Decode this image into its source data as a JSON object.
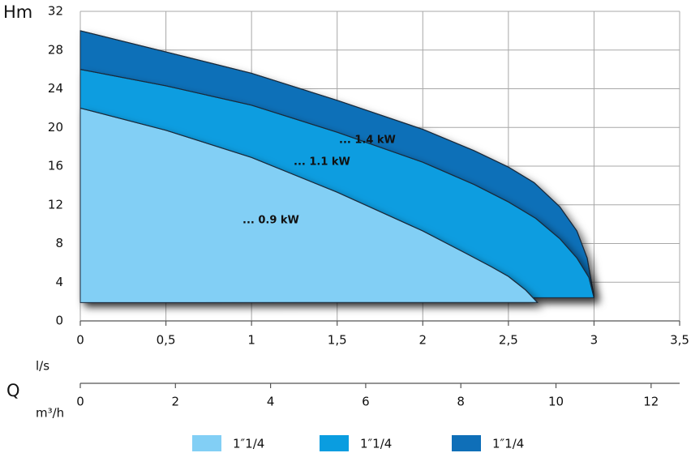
{
  "chart_data": {
    "type": "area",
    "y_label": "Hm",
    "x_label": "l/s",
    "q_label": "Q",
    "x2_label": "m³/h",
    "xlim": [
      0,
      3.5
    ],
    "ylim": [
      0,
      32
    ],
    "xticks": [
      0,
      {
        "value": 0.5,
        "label": "0,5"
      },
      1,
      {
        "value": 1.5,
        "label": "1,5"
      },
      2,
      {
        "value": 2.5,
        "label": "2,5"
      },
      3,
      {
        "value": 3.5,
        "label": "3,5"
      }
    ],
    "yticks": [
      0,
      4,
      8,
      12,
      16,
      20,
      24,
      28,
      32
    ],
    "x2lim": [
      0,
      12.6
    ],
    "x2ticks": [
      0,
      2,
      4,
      6,
      8,
      10,
      12
    ],
    "grid": true,
    "series": [
      {
        "name": "1″1/4",
        "color": "#0f6fb8",
        "x": [
          0,
          0.5,
          1,
          1.5,
          2,
          2.3,
          2.5,
          2.65,
          2.8,
          2.9,
          2.96,
          3
        ],
        "values": [
          30,
          27.8,
          25.6,
          22.8,
          19.8,
          17.6,
          15.9,
          14.3,
          11.8,
          9.3,
          6.5,
          2.5
        ]
      },
      {
        "name": "1″1/4",
        "color": "#0a9de0",
        "x": [
          0,
          0.5,
          1,
          1.5,
          2,
          2.3,
          2.5,
          2.66,
          2.8,
          2.9,
          2.97,
          3
        ],
        "values": [
          26,
          24.3,
          22.3,
          19.5,
          16.4,
          14.1,
          12.3,
          10.6,
          8.5,
          6.5,
          4.5,
          2.4
        ]
      },
      {
        "name": "1″1/4",
        "color": "#82cff5",
        "x": [
          0,
          0.5,
          1,
          1.5,
          2,
          2.25,
          2.4,
          2.5,
          2.6,
          2.67
        ],
        "values": [
          22,
          19.7,
          16.9,
          13.3,
          9.3,
          7,
          5.6,
          4.6,
          3.2,
          1.9
        ]
      }
    ],
    "annotations": [
      "... 1.4 kW",
      "... 1.1 kW",
      "... 0.9 kW"
    ]
  }
}
